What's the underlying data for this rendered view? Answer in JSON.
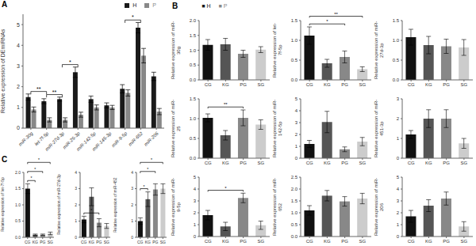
{
  "chart_data": [
    {
      "type": "bar",
      "title": "A",
      "categories": [
        "miR-30g",
        "let-7f-5p",
        "miR-27d-3p",
        "miR-25-3p",
        "miR-142-5p",
        "miR-145-3p",
        "miR-9-5p",
        "miR-652",
        "miR-206"
      ],
      "series": [
        {
          "name": "H",
          "color": "#1a1a1a",
          "values": [
            1.5,
            1.3,
            1.4,
            2.7,
            1.4,
            1.1,
            1.9,
            4.85,
            2.5
          ],
          "errors": [
            0.15,
            0.12,
            0.1,
            0.25,
            0.15,
            0.12,
            0.2,
            0.25,
            0.2
          ]
        },
        {
          "name": "P",
          "color": "#888888",
          "values": [
            0.9,
            0.4,
            0.4,
            0.65,
            1.0,
            1.0,
            1.7,
            3.5,
            0.8
          ],
          "errors": [
            0.12,
            0.1,
            0.1,
            0.12,
            0.12,
            0.1,
            0.15,
            0.35,
            0.15
          ]
        }
      ],
      "y_label": "Relative expression of DEmiRNAs",
      "ylim": [
        0,
        5.5
      ],
      "yticks": [
        0,
        1,
        2,
        3,
        4,
        5
      ],
      "legend": "upper right",
      "annotations": [
        {
          "text": "**",
          "categories": [
            "miR-30g",
            "let-7f-5p"
          ]
        },
        {
          "text": "**",
          "categories": [
            "let-7f-5p",
            "miR-27d-3p"
          ]
        },
        {
          "text": "*",
          "categories": [
            "miR-27d-3p",
            "miR-25-3p"
          ]
        },
        {
          "text": "*",
          "categories": [
            "miR-9-5p",
            "miR-652"
          ]
        }
      ]
    },
    {
      "type": "bar",
      "title": "B",
      "y_label": "Relative expression of miR-30g",
      "categories": [
        "CG",
        "KG",
        "PG",
        "SG"
      ],
      "values": [
        1.18,
        1.2,
        0.88,
        1.02
      ],
      "errors": [
        0.18,
        0.2,
        0.12,
        0.1
      ],
      "colors": [
        "#111111",
        "#555555",
        "#888888",
        "#cccccc"
      ],
      "ylim": [
        0,
        2.0
      ],
      "yticks": [
        {
          "value": 0,
          "label": "0.0"
        },
        0.5,
        {
          "value": 1.0,
          "label": "1.0"
        },
        1.5,
        {
          "value": 2.0,
          "label": "2.0"
        }
      ],
      "annotations": [
        {
          "text": "■ H",
          "color": "#1a1a1a"
        },
        {
          "text": "■ P",
          "color": "#888888"
        }
      ]
    },
    {
      "type": "bar",
      "y_label": "Relative expression of let-7f-5p",
      "categories": [
        "CG",
        "KG",
        "PG",
        "SG"
      ],
      "values": [
        1.12,
        0.42,
        0.58,
        0.27
      ],
      "errors": [
        0.22,
        0.1,
        0.15,
        0.06
      ],
      "colors": [
        "#111111",
        "#555555",
        "#888888",
        "#cccccc"
      ],
      "ylim": [
        0,
        1.5
      ],
      "yticks": [
        {
          "value": 0,
          "label": "0.0"
        },
        0.5,
        {
          "value": 1.0,
          "label": "1.0"
        },
        1.5
      ],
      "annotations": [
        {
          "text": "*",
          "categories": [
            "CG",
            "PG"
          ]
        },
        {
          "text": "**",
          "categories": [
            "CG",
            "SG"
          ]
        }
      ]
    },
    {
      "type": "bar",
      "y_label": "Relative expression of miR-27d-3p",
      "categories": [
        "CG",
        "KG",
        "PG",
        "SG"
      ],
      "values": [
        1.08,
        0.88,
        0.85,
        0.82
      ],
      "errors": [
        0.2,
        0.22,
        0.18,
        0.2
      ],
      "colors": [
        "#111111",
        "#555555",
        "#888888",
        "#cccccc"
      ],
      "ylim": [
        0,
        1.5
      ],
      "yticks": [
        {
          "value": 0,
          "label": "0.0"
        },
        0.5,
        {
          "value": 1.0,
          "label": "1.0"
        },
        1.5
      ],
      "annotations": []
    },
    {
      "type": "bar",
      "y_label": "Relative expression of miR-25",
      "categories": [
        "CG",
        "KG",
        "PG",
        "SG"
      ],
      "values": [
        1.02,
        0.58,
        1.02,
        0.85
      ],
      "errors": [
        0.1,
        0.12,
        0.2,
        0.12
      ],
      "colors": [
        "#111111",
        "#555555",
        "#888888",
        "#cccccc"
      ],
      "ylim": [
        0,
        1.5
      ],
      "yticks": [
        {
          "value": 0,
          "label": "0.0"
        },
        0.5,
        {
          "value": 1.0,
          "label": "1.0"
        },
        1.5
      ],
      "annotations": [
        {
          "text": "**",
          "categories": [
            "CG",
            "PG"
          ]
        }
      ]
    },
    {
      "type": "bar",
      "y_label": "Relative expression of miR-142-5p",
      "categories": [
        "CG",
        "KG",
        "PG",
        "SG"
      ],
      "values": [
        1.2,
        3.05,
        0.75,
        1.4
      ],
      "errors": [
        0.3,
        0.9,
        0.2,
        0.35
      ],
      "colors": [
        "#111111",
        "#555555",
        "#888888",
        "#cccccc"
      ],
      "ylim": [
        0,
        5
      ],
      "yticks": [
        0,
        1,
        2,
        3,
        4,
        5
      ],
      "annotations": []
    },
    {
      "type": "bar",
      "y_label": "Relative expression of miR-451-3p",
      "categories": [
        "CG",
        "KG",
        "PG",
        "SG"
      ],
      "values": [
        1.2,
        2.0,
        2.0,
        0.75
      ],
      "errors": [
        0.2,
        0.45,
        0.45,
        0.25
      ],
      "colors": [
        "#111111",
        "#555555",
        "#888888",
        "#cccccc"
      ],
      "ylim": [
        0,
        3
      ],
      "yticks": [
        0,
        1,
        2,
        3
      ],
      "annotations": []
    },
    {
      "type": "bar",
      "y_label": "Relative expression of miR-9-5p",
      "categories": [
        "CG",
        "KG",
        "PG",
        "SG"
      ],
      "values": [
        1.8,
        0.85,
        3.25,
        0.95
      ],
      "errors": [
        0.4,
        0.35,
        0.4,
        0.35
      ],
      "colors": [
        "#111111",
        "#555555",
        "#888888",
        "#cccccc"
      ],
      "ylim": [
        0,
        5
      ],
      "yticks": [
        0,
        1,
        2,
        3,
        4,
        5
      ],
      "annotations": [
        {
          "text": "*",
          "categories": [
            "CG",
            "PG"
          ]
        }
      ]
    },
    {
      "type": "bar",
      "y_label": "Relative expression of miR-652",
      "categories": [
        "CG",
        "KG",
        "PG",
        "SG"
      ],
      "values": [
        1.1,
        1.72,
        1.48,
        1.6
      ],
      "errors": [
        0.2,
        0.22,
        0.2,
        0.22
      ],
      "colors": [
        "#111111",
        "#555555",
        "#888888",
        "#cccccc"
      ],
      "ylim": [
        0,
        2.5
      ],
      "yticks": [
        {
          "value": 0,
          "label": "0.0"
        },
        0.5,
        {
          "value": 1.0,
          "label": "1.0"
        },
        1.5,
        {
          "value": 2.0,
          "label": "2.0"
        },
        2.5
      ],
      "annotations": []
    },
    {
      "type": "bar",
      "y_label": "Relative expression of miR-206",
      "categories": [
        "CG",
        "KG",
        "PG",
        "SG"
      ],
      "values": [
        1.7,
        2.6,
        3.2,
        0.85
      ],
      "errors": [
        0.5,
        0.5,
        0.55,
        0.4
      ],
      "colors": [
        "#111111",
        "#555555",
        "#888888",
        "#cccccc"
      ],
      "ylim": [
        0,
        5
      ],
      "yticks": [
        0,
        1,
        2,
        3,
        4,
        5
      ],
      "annotations": []
    },
    {
      "type": "bar",
      "title": "C",
      "y_label": "Relative expression of let-7f-5p",
      "categories": [
        "CG",
        "KG",
        "PG",
        "SG"
      ],
      "values": [
        1.5,
        0.08,
        0.08,
        0.12
      ],
      "errors": [
        0.15,
        0.02,
        0.02,
        0.04
      ],
      "colors": [
        "#111111",
        "#555555",
        "#888888",
        "#cccccc"
      ],
      "ylim": [
        0,
        2.0
      ],
      "yticks": [
        {
          "value": 0,
          "label": "0.0"
        },
        0.5,
        {
          "value": 1.0,
          "label": "1.0"
        },
        1.5,
        {
          "value": 2.0,
          "label": "2.0"
        }
      ],
      "annotations": [
        {
          "text": "*",
          "categories": [
            "CG",
            "KG"
          ]
        },
        {
          "text": "*",
          "categories": [
            "CG",
            "PG"
          ]
        },
        {
          "text": "*",
          "categories": [
            "CG",
            "SG"
          ]
        }
      ]
    },
    {
      "type": "bar",
      "y_label": "Relative expression of miR-27d-3p",
      "categories": [
        "CG",
        "KG",
        "PG",
        "SG"
      ],
      "values": [
        1.1,
        2.5,
        0.9,
        0.7
      ],
      "errors": [
        0.2,
        0.55,
        0.25,
        0.15
      ],
      "colors": [
        "#111111",
        "#555555",
        "#888888",
        "#cccccc"
      ],
      "ylim": [
        0,
        4
      ],
      "yticks": [
        0,
        1,
        2,
        3,
        4
      ],
      "annotations": [
        {
          "text": "*",
          "categories": [
            "CG",
            "PG"
          ]
        }
      ]
    },
    {
      "type": "bar",
      "y_label": "Relative expression of miR-452",
      "categories": [
        "CG",
        "KG",
        "PG",
        "SG"
      ],
      "values": [
        1.0,
        2.35,
        2.95,
        3.0
      ],
      "errors": [
        0.2,
        0.45,
        0.35,
        0.3
      ],
      "colors": [
        "#111111",
        "#555555",
        "#888888",
        "#cccccc"
      ],
      "ylim": [
        0,
        4
      ],
      "yticks": [
        0,
        1,
        2,
        3,
        4
      ],
      "annotations": [
        {
          "text": "*",
          "categories": [
            "CG",
            "KG"
          ]
        },
        {
          "text": "*",
          "categories": [
            "CG",
            "PG"
          ]
        },
        {
          "text": "*",
          "categories": [
            "CG",
            "SG"
          ]
        }
      ]
    }
  ]
}
